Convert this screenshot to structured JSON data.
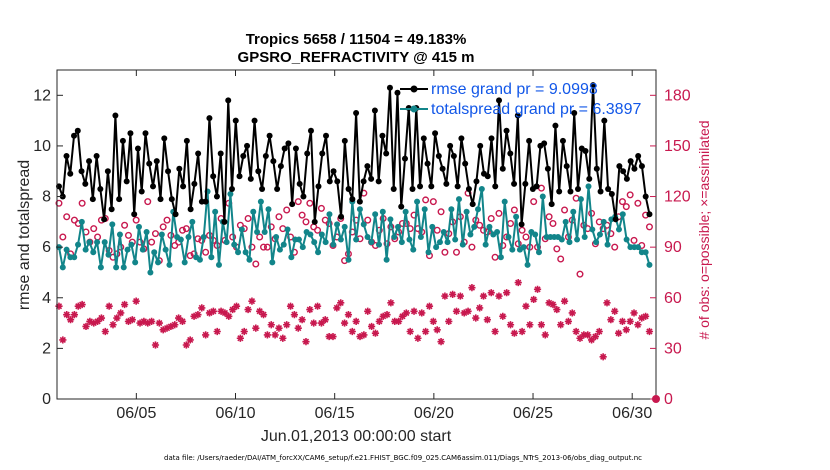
{
  "chart_data": {
    "type": "line",
    "title_line1": "Tropics 5658 / 11504 = 49.183%",
    "title_line2": "GPSRO_REFRACTIVITY @ 415 m",
    "xlabel": "Jun.01,2013 00:00:00 start",
    "ylabel": "rmse and totalspread",
    "y2label": "# of obs: o=possible; ×=assimilated",
    "footnote": "data file: /Users/raeder/DAI/ATM_forcXX/CAM6_setup/f.e21.FHIST_BGC.f09_025.CAM6assim.011/Diags_NTrS_2013-06/obs_diag_output.nc",
    "xlim": [
      1,
      31.2
    ],
    "ylim": [
      0,
      13
    ],
    "y2lim": [
      0,
      195
    ],
    "x_ticks": [
      {
        "x": 5,
        "label": "06/05"
      },
      {
        "x": 10,
        "label": "06/10"
      },
      {
        "x": 15,
        "label": "06/15"
      },
      {
        "x": 20,
        "label": "06/20"
      },
      {
        "x": 25,
        "label": "06/25"
      },
      {
        "x": 30,
        "label": "06/30"
      }
    ],
    "y_ticks": [
      {
        "v": 0,
        "label": "0"
      },
      {
        "v": 2,
        "label": "2"
      },
      {
        "v": 4,
        "label": "4"
      },
      {
        "v": 6,
        "label": "6"
      },
      {
        "v": 8,
        "label": "8"
      },
      {
        "v": 10,
        "label": "10"
      },
      {
        "v": 12,
        "label": "12"
      }
    ],
    "y2_ticks": [
      {
        "v": 0,
        "label": "0"
      },
      {
        "v": 30,
        "label": "30"
      },
      {
        "v": 60,
        "label": "60"
      },
      {
        "v": 90,
        "label": "90"
      },
      {
        "v": 120,
        "label": "120"
      },
      {
        "v": 150,
        "label": "150"
      },
      {
        "v": 180,
        "label": "180"
      }
    ],
    "legend": {
      "placement": "top-right",
      "entries": [
        "rmse grand pr = 9.0998",
        "totalspread grand pr = 6.3897"
      ]
    },
    "colors": {
      "rmse": "#000000",
      "spread": "#12858a",
      "obs": "#c8194f",
      "legend_text": "#1257e8"
    },
    "series": [
      {
        "name": "rmse",
        "values": [
          8.4,
          8.0,
          9.6,
          8.9,
          10.4,
          10.6,
          9.0,
          8.5,
          9.4,
          7.9,
          9.6,
          8.3,
          7.1,
          9.0,
          7.5,
          11.2,
          7.9,
          10.2,
          8.6,
          10.5,
          7.3,
          9.9,
          8.2,
          10.5,
          9.3,
          8.4,
          9.4,
          7.9,
          10.3,
          9.0,
          7.9,
          7.3,
          9.1,
          8.4,
          10.2,
          7.5,
          8.5,
          9.7,
          7.8,
          7.8,
          11.1,
          8.8,
          8.0,
          9.7,
          7.0,
          11.8,
          8.3,
          11.0,
          8.8,
          9.6,
          10.0,
          8.7,
          11.0,
          9.0,
          8.3,
          9.6,
          10.4,
          9.4,
          8.3,
          9.2,
          9.9,
          10.1,
          7.7,
          9.9,
          8.5,
          8.0,
          9.7,
          10.6,
          7.0,
          8.4,
          9.7,
          10.4,
          8.6,
          9.0,
          8.6,
          7.2,
          10.2,
          8.3,
          7.9,
          11.3,
          7.8,
          8.6,
          9.2,
          8.7,
          11.4,
          8.6,
          10.4,
          9.7,
          12.3,
          8.3,
          12.1,
          7.6,
          9.5,
          11.5,
          8.3,
          11.5,
          8.4,
          10.3,
          9.3,
          8.4,
          10.5,
          9.6,
          9.1,
          8.5,
          10.0,
          9.6,
          8.4,
          10.3,
          9.3,
          8.3,
          7.7,
          8.6,
          10.0,
          8.9,
          8.8,
          10.3,
          8.4,
          11.8,
          9.1,
          10.6,
          9.7,
          8.5,
          11.2,
          6.9,
          8.5,
          10.2,
          8.3,
          8.4,
          10.0,
          10.1,
          9.1,
          7.7,
          10.8,
          8.2,
          10.2,
          9.2,
          8.2,
          11.3,
          8.3,
          9.9,
          9.8,
          8.7,
          12.4,
          9.1,
          8.2,
          11.0,
          8.3,
          8.1,
          7.1,
          9.2,
          9.0,
          8.7,
          9.4,
          9.1,
          9.6,
          9.2,
          8.0,
          7.3
        ]
      },
      {
        "name": "totalspread",
        "values": [
          6.0,
          5.2,
          5.9,
          5.6,
          5.6,
          6.1,
          7.0,
          5.9,
          6.2,
          5.8,
          6.2,
          5.2,
          6.2,
          5.7,
          6.9,
          5.2,
          6.5,
          5.2,
          5.9,
          6.1,
          5.4,
          6.8,
          5.9,
          6.6,
          5.0,
          5.8,
          5.4,
          6.5,
          5.9,
          5.3,
          7.4,
          6.4,
          6.3,
          5.4,
          6.4,
          7.0,
          5.6,
          5.5,
          6.4,
          8.2,
          5.6,
          7.4,
          5.3,
          7.0,
          6.2,
          8.1,
          6.1,
          5.8,
          6.7,
          5.8,
          5.5,
          7.4,
          6.6,
          7.8,
          6.6,
          7.5,
          5.4,
          6.4,
          5.9,
          6.1,
          6.7,
          5.6,
          6.3,
          6.3,
          6.0,
          6.6,
          6.5,
          6.2,
          5.8,
          6.5,
          6.2,
          7.3,
          6.1,
          6.9,
          6.3,
          6.8,
          5.5,
          7.8,
          6.3,
          7.5,
          6.9,
          6.4,
          6.2,
          7.3,
          6.1,
          7.4,
          5.5,
          7.1,
          6.4,
          6.8,
          6.2,
          7.4,
          6.3,
          5.9,
          7.8,
          6.4,
          7.5,
          5.8,
          6.8,
          6.0,
          6.2,
          6.6,
          6.2,
          7.5,
          6.3,
          7.9,
          6.1,
          7.4,
          6.5,
          6.8,
          7.5,
          8.3,
          6.1,
          6.8,
          6.5,
          6.6,
          5.6,
          7.8,
          6.4,
          5.9,
          7.2,
          5.9,
          6.0,
          5.3,
          6.6,
          6.5,
          5.8,
          8.0,
          6.4,
          6.4,
          6.4,
          6.4,
          6.3,
          7.0,
          6.2,
          7.4,
          6.3,
          7.9,
          6.4,
          8.4,
          6.7,
          6.2,
          6.5,
          7.0,
          6.1,
          7.1,
          7.2,
          6.7,
          7.3,
          6.3,
          6.0,
          6.0,
          6.0,
          5.8,
          5.8,
          5.3
        ]
      },
      {
        "name": "obs possible",
        "values": [
          116,
          96,
          108,
          86,
          106,
          104,
          116,
          99,
          93,
          101,
          96,
          106,
          107,
          88,
          84,
          86,
          90,
          103,
          97,
          93,
          106,
          93,
          89,
          117,
          93,
          98,
          82,
          102,
          106,
          97,
          91,
          93,
          100,
          101,
          85,
          86,
          95,
          94,
          87,
          97,
          94,
          91,
          107,
          94,
          116,
          96,
          90,
          103,
          101,
          107,
          90,
          80,
          96,
          90,
          90,
          102,
          95,
          108,
          101,
          112,
          96,
          87,
          117,
          109,
          105,
          116,
          102,
          100,
          113,
          106,
          104,
          91,
          96,
          107,
          82,
          86,
          99,
          106,
          95,
          122,
          106,
          93,
          91,
          100,
          107,
          92,
          102,
          95,
          99,
          104,
          104,
          101,
          109,
          101,
          99,
          118,
          85,
          117,
          100,
          111,
          87,
          98,
          105,
          87,
          108,
          93,
          122,
          90,
          106,
          103,
          100,
          99,
          107,
          84,
          110,
          91,
          96,
          104,
          112,
          92,
          100,
          96,
          90,
          117,
          90,
          125,
          95,
          108,
          104,
          89,
          83,
          112,
          96,
          106,
          119,
          74,
          103,
          101,
          110,
          92,
          105,
          101,
          103,
          98,
          90,
          108,
          117,
          114,
          121,
          94,
          116,
          91,
          109,
          102
        ]
      },
      {
        "name": "obs assimilated",
        "values": [
          55,
          35,
          50,
          47,
          50,
          55,
          56,
          43,
          46,
          45,
          46,
          48,
          40,
          55,
          44,
          48,
          51,
          56,
          46,
          47,
          58,
          45,
          46,
          45,
          46,
          32,
          45,
          41,
          42,
          43,
          44,
          48,
          46,
          32,
          35,
          49,
          50,
          54,
          38,
          51,
          52,
          40,
          52,
          51,
          49,
          53,
          55,
          36,
          40,
          53,
          58,
          42,
          52,
          50,
          38,
          44,
          38,
          42,
          36,
          44,
          55,
          50,
          42,
          47,
          34,
          53,
          45,
          55,
          45,
          47,
          37,
          37,
          54,
          57,
          45,
          50,
          40,
          46,
          37,
          38,
          52,
          43,
          39,
          46,
          49,
          50,
          57,
          46,
          46,
          49,
          51,
          40,
          52,
          36,
          51,
          40,
          55,
          46,
          41,
          34,
          61,
          46,
          62,
          52,
          61,
          51,
          52,
          66,
          48,
          54,
          61,
          47,
          63,
          40,
          61,
          49,
          63,
          44,
          39,
          69,
          40,
          55,
          44,
          59,
          65,
          44,
          38,
          57,
          56,
          53,
          44,
          58,
          46,
          51,
          40,
          36,
          38,
          38,
          35,
          37,
          40,
          25,
          57,
          47,
          52,
          39,
          46,
          41,
          46,
          51,
          44,
          48,
          49,
          40
        ]
      }
    ]
  }
}
